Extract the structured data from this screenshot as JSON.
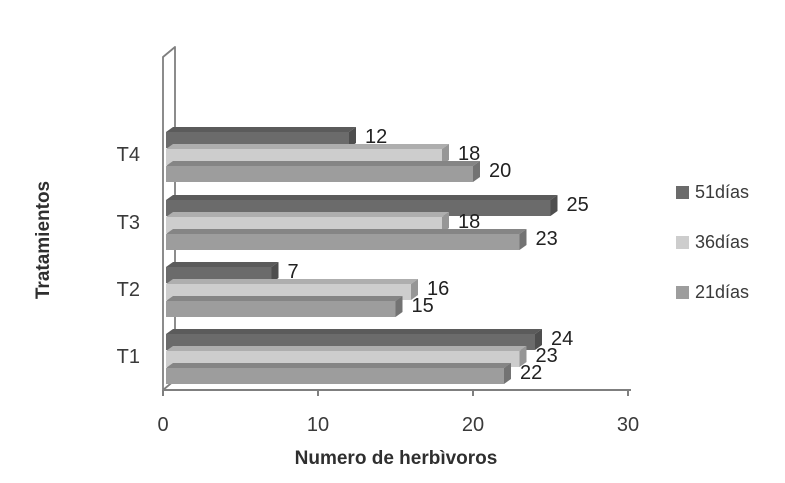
{
  "chart_data": {
    "type": "bar",
    "orientation": "horizontal",
    "style": "3d-effect-grayscale",
    "title": "",
    "xlabel": "Numero de herbìvoros",
    "ylabel": "Tratamientos",
    "categories": [
      "T4",
      "T3",
      "T2",
      "T1"
    ],
    "series": [
      {
        "name": "51días",
        "color": "#6b6b6b",
        "values": [
          12,
          25,
          7,
          24
        ]
      },
      {
        "name": "36días",
        "color": "#cdcdcd",
        "values": [
          18,
          18,
          16,
          23
        ]
      },
      {
        "name": "21días",
        "color": "#9d9d9d",
        "values": [
          20,
          23,
          15,
          22
        ]
      }
    ],
    "xticks": [
      0,
      10,
      20,
      30
    ],
    "xlim": [
      0,
      30
    ],
    "grid": "off",
    "legend_position": "right",
    "data_labels": true,
    "axis_color": "#7f7f7f",
    "label_color": "#212121",
    "tick_color": "#3a3a3a"
  }
}
